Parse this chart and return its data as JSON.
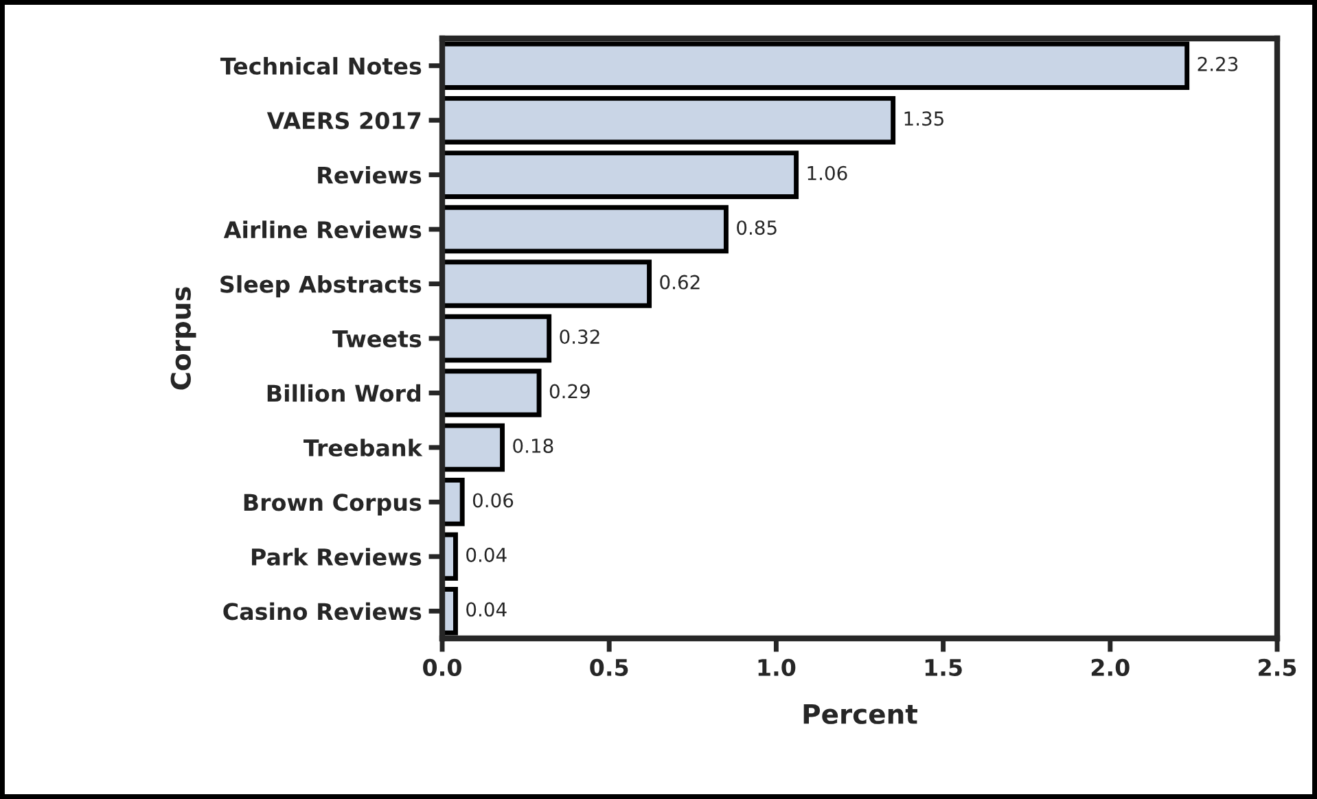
{
  "chart_data": {
    "type": "bar",
    "orientation": "horizontal",
    "xlabel": "Percent",
    "ylabel": "Corpus",
    "categories": [
      "Technical Notes",
      "VAERS 2017",
      "Reviews",
      "Airline Reviews",
      "Sleep Abstracts",
      "Tweets",
      "Billion Word",
      "Treebank",
      "Brown Corpus",
      "Park Reviews",
      "Casino Reviews"
    ],
    "values": [
      2.23,
      1.35,
      1.06,
      0.85,
      0.62,
      0.32,
      0.29,
      0.18,
      0.06,
      0.04,
      0.04
    ],
    "color": "#c9d5e6",
    "data_labels": true,
    "xlim": [
      0,
      2.5
    ],
    "xticks": [
      {
        "value": 0,
        "label": "0.0"
      },
      {
        "value": 0.5,
        "label": "0.5"
      },
      {
        "value": 1,
        "label": "1.0"
      },
      {
        "value": 1.5,
        "label": "1.5"
      },
      {
        "value": 2,
        "label": "2.0"
      },
      {
        "value": 2.5,
        "label": "2.5"
      }
    ],
    "grid": false,
    "legend": false
  }
}
